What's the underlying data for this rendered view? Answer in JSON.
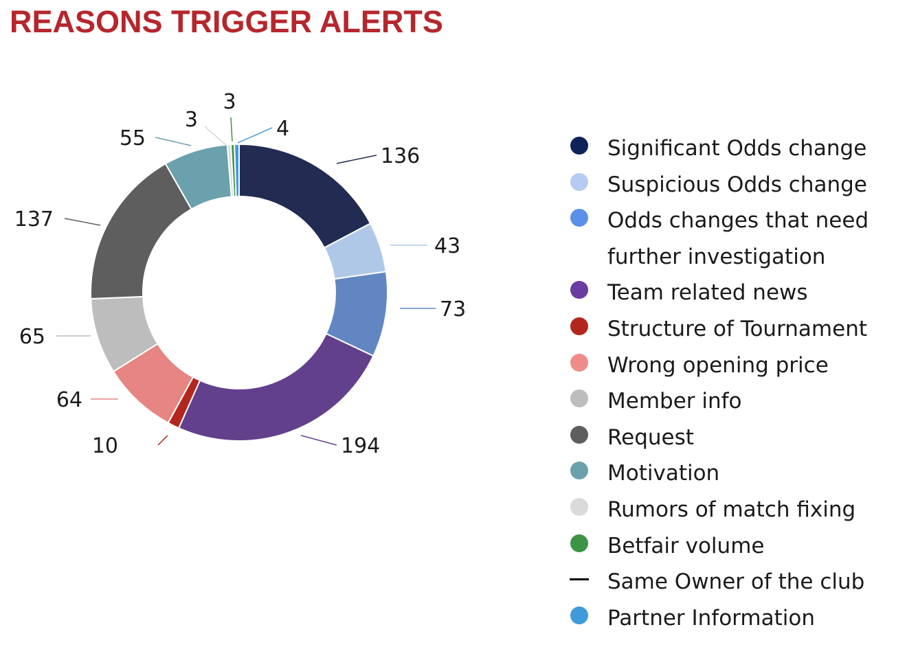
{
  "chart_data": {
    "type": "pie",
    "title": "REASONS TRIGGER ALERTS",
    "donut": true,
    "legend_position": "right",
    "categories": [
      "Significant Odds change",
      "Suspicious Odds change",
      "Odds changes that need further investigation",
      "Team related news",
      "Structure of Tournament",
      "Wrong opening price",
      "Member info",
      "Request",
      "Motivation",
      "Rumors of match fixing",
      "Betfair volume",
      "Same Owner of the club",
      "Partner Information"
    ],
    "values": [
      136,
      43,
      73,
      194,
      10,
      64,
      65,
      137,
      55,
      3,
      3,
      0,
      4
    ],
    "data_labels": [
      "136",
      "43",
      "73",
      "194",
      "10",
      "64",
      "65",
      "137",
      "55",
      "3",
      "3",
      "",
      "4"
    ],
    "colors": [
      "#222b52",
      "#b0c8e8",
      "#6186c2",
      "#62408c",
      "#b3261e",
      "#e68582",
      "#bdbdbd",
      "#5e5e5e",
      "#6aa1ac",
      "#d9d9d9",
      "#3e9445",
      "#000000",
      "#3f9ad9"
    ],
    "legend_markers": [
      "dot",
      "dot",
      "dot",
      "dot",
      "dot",
      "dot",
      "dot",
      "dot",
      "dot",
      "dot",
      "dot",
      "dash",
      "dot"
    ],
    "legend_marker_colors": [
      "#0e2357",
      "#b5cbf2",
      "#5b90e8",
      "#6a3ba0",
      "#b3261e",
      "#ef8c8a",
      "#bdbdbd",
      "#5e5e5e",
      "#6aa1ac",
      "#dadada",
      "#3e9445",
      "#000000",
      "#3f9ad9"
    ]
  }
}
